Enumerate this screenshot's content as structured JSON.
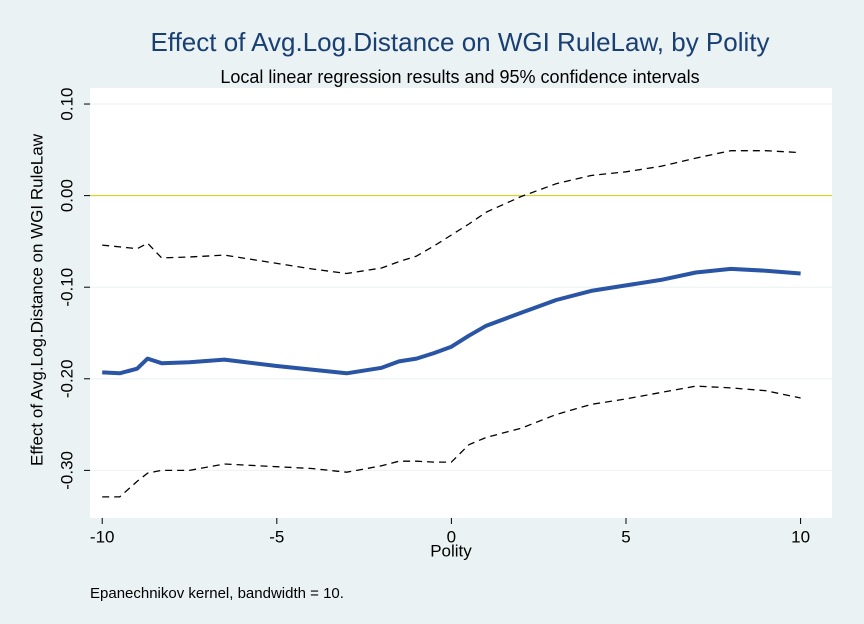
{
  "chart_data": {
    "type": "line",
    "title": "Effect of Avg.Log.Distance on WGI RuleLaw, by Polity",
    "subtitle": "Local linear regression results and 95% confidence intervals",
    "x_label": "Polity",
    "y_label": "Effect of Avg.Log.Distance on WGI RuleLaw",
    "note": "Epanechnikov kernel, bandwidth = 10.",
    "x": [
      -10,
      -9.5,
      -9,
      -8.7,
      -8.3,
      -7.5,
      -6.5,
      -5,
      -4,
      -3,
      -2,
      -1.5,
      -1,
      -0.5,
      0,
      0.5,
      1,
      2,
      3,
      4,
      5,
      6,
      7,
      8,
      9,
      10
    ],
    "series": [
      {
        "color": "#2a54a4",
        "style": "solid",
        "width": 4,
        "values": [
          -0.193,
          -0.194,
          -0.189,
          -0.178,
          -0.183,
          -0.182,
          -0.179,
          -0.186,
          -0.19,
          -0.194,
          -0.188,
          -0.181,
          -0.178,
          -0.172,
          -0.165,
          -0.153,
          -0.142,
          -0.128,
          -0.114,
          -0.104,
          -0.098,
          -0.092,
          -0.084,
          -0.08,
          -0.082,
          -0.085
        ]
      },
      {
        "color": "#000000",
        "style": "dashed",
        "width": 1.3,
        "values": [
          -0.054,
          -0.056,
          -0.058,
          -0.052,
          -0.068,
          -0.067,
          -0.065,
          -0.074,
          -0.08,
          -0.085,
          -0.079,
          -0.072,
          -0.066,
          -0.055,
          -0.043,
          -0.031,
          -0.018,
          -0.001,
          0.013,
          0.022,
          0.026,
          0.032,
          0.041,
          0.049,
          0.049,
          0.047
        ]
      },
      {
        "color": "#000000",
        "style": "dashed",
        "width": 1.3,
        "values": [
          -0.329,
          -0.329,
          -0.312,
          -0.303,
          -0.3,
          -0.3,
          -0.293,
          -0.296,
          -0.298,
          -0.302,
          -0.295,
          -0.29,
          -0.29,
          -0.291,
          -0.291,
          -0.272,
          -0.264,
          -0.254,
          -0.239,
          -0.228,
          -0.222,
          -0.215,
          -0.208,
          -0.21,
          -0.213,
          -0.221
        ]
      }
    ],
    "xlim": [
      -10.35,
      10.9
    ],
    "ylim": [
      -0.352,
      0.1175
    ],
    "xticks": [
      -10,
      -5,
      0,
      5,
      10
    ],
    "yticks": [
      {
        "value": 0.1,
        "label": "0.10"
      },
      {
        "value": 0,
        "label": "0.00"
      },
      {
        "value": -0.1,
        "label": "-0.10"
      },
      {
        "value": -0.2,
        "label": "-0.20"
      },
      {
        "value": -0.3,
        "label": "-0.30"
      }
    ],
    "yline": {
      "value": 0,
      "color": "#d4d400"
    },
    "grid": true
  }
}
